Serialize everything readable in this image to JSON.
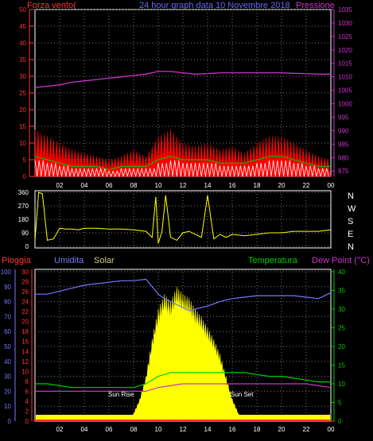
{
  "header": {
    "wind_label": "Forza vento(",
    "title": "24 hour graph data  10 Novembre 2018",
    "pressure_label": "Pressione"
  },
  "footer_labels": {
    "rain": "Pioggia",
    "humidity": "Umidita",
    "solar": "Solar",
    "temperature": "Temperatura",
    "dewpoint": "Dew Point (°C)",
    "sunrise": "Sun Rise",
    "sunset": "Sun Set"
  },
  "compass": [
    "N",
    "W",
    "S",
    "E",
    "N"
  ],
  "colors": {
    "pressure": "#cc33cc",
    "wind": "#ff0000",
    "wind_avg": "#00cc00",
    "wind_gust": "#ffffff",
    "direction": "#ffff00",
    "humidity": "#7777ff",
    "temperature": "#00cc00",
    "dewpoint": "#cc33cc",
    "rain": "#ff3333",
    "solar": "#ffff00",
    "axis_wind": "#ff3333",
    "axis_pressure": "#cc33cc",
    "axis_humidity": "#7777ff",
    "axis_temp": "#00cc00"
  },
  "chart_data": [
    {
      "type": "line",
      "name": "wind_pressure",
      "x_ticks": [
        "02",
        "04",
        "06",
        "08",
        "10",
        "12",
        "14",
        "16",
        "18",
        "20",
        "22",
        "00"
      ],
      "left_ticks": [
        "0",
        "5",
        "10",
        "15",
        "20",
        "25",
        "30",
        "35",
        "40",
        "45",
        "50"
      ],
      "right_ticks": [
        "975",
        "980",
        "985",
        "990",
        "995",
        "1000",
        "1005",
        "1010",
        "1015",
        "1020",
        "1025",
        "1030",
        "1035"
      ],
      "ylim_left": [
        0,
        50
      ],
      "ylim_right": [
        973,
        1035
      ],
      "pressure_x": [
        0,
        1,
        2,
        3,
        4,
        5,
        6,
        7,
        8,
        9,
        10,
        11,
        12,
        13,
        14,
        15,
        16,
        17,
        18,
        19,
        20,
        21,
        22,
        23,
        24
      ],
      "pressure": [
        1006,
        1006.5,
        1007,
        1008,
        1008.5,
        1009,
        1009.5,
        1010,
        1010.5,
        1011,
        1012,
        1012,
        1011.5,
        1011,
        1011.2,
        1011.5,
        1011.5,
        1011.5,
        1011.5,
        1011.5,
        1011.5,
        1011.3,
        1011.2,
        1011,
        1011
      ],
      "wind_x": [
        0,
        1,
        2,
        3,
        4,
        5,
        6,
        7,
        8,
        9,
        10,
        11,
        12,
        13,
        14,
        15,
        16,
        17,
        18,
        19,
        20,
        21,
        22,
        23,
        24
      ],
      "wind_gust": [
        14,
        12,
        10,
        8,
        7,
        6,
        5,
        6,
        8,
        6,
        12,
        14,
        10,
        9,
        10,
        8,
        9,
        7,
        10,
        12,
        12,
        10,
        8,
        6,
        5
      ],
      "wind_avg": [
        6,
        5,
        4,
        3,
        3,
        3,
        2,
        3,
        3,
        3,
        5,
        6,
        5,
        5,
        5,
        4,
        4,
        4,
        5,
        6,
        6,
        5,
        4,
        3,
        3
      ]
    },
    {
      "type": "scatter",
      "name": "wind_direction",
      "left_ticks": [
        "0",
        "90",
        "180",
        "270",
        "360"
      ],
      "ylim": [
        0,
        360
      ],
      "x": [
        0,
        0.3,
        0.6,
        1,
        1.5,
        2,
        2.5,
        3,
        3.5,
        4,
        5,
        6,
        7,
        8,
        9,
        9.5,
        9.8,
        10,
        10.3,
        10.6,
        11,
        11.5,
        12,
        12.5,
        13,
        13.5,
        14,
        14.5,
        15,
        15.5,
        16,
        17,
        18,
        19,
        20,
        21,
        22,
        23,
        24
      ],
      "values": [
        40,
        360,
        350,
        40,
        50,
        120,
        115,
        115,
        110,
        120,
        120,
        115,
        115,
        110,
        100,
        60,
        330,
        20,
        100,
        340,
        60,
        40,
        90,
        100,
        80,
        60,
        340,
        50,
        80,
        60,
        80,
        70,
        80,
        90,
        90,
        100,
        100,
        100,
        110
      ]
    },
    {
      "type": "line",
      "name": "humidity_temp_solar",
      "left_ticks": [
        "0",
        "10",
        "20",
        "30",
        "40",
        "50",
        "60",
        "70",
        "80",
        "90",
        "100"
      ],
      "rain_ticks": [
        "0",
        "2",
        "4",
        "6",
        "8",
        "10",
        "12",
        "14",
        "16",
        "18",
        "20",
        "22",
        "24",
        "26",
        "28",
        "30"
      ],
      "right_ticks": [
        "0",
        "5",
        "10",
        "15",
        "20",
        "25",
        "30",
        "35",
        "40"
      ],
      "ylim_humidity": [
        0,
        100
      ],
      "ylim_temp": [
        0,
        40
      ],
      "humidity_x": [
        0,
        1,
        2,
        3,
        4,
        5,
        6,
        7,
        8,
        9,
        9.5,
        10,
        10.5,
        11,
        11.5,
        12,
        12.5,
        13,
        14,
        15,
        16,
        17,
        18,
        19,
        20,
        21,
        22,
        23,
        23.5,
        24
      ],
      "humidity": [
        85,
        85,
        87,
        89,
        91,
        92,
        93,
        94,
        94,
        95,
        90,
        85,
        82,
        80,
        78,
        76,
        74,
        75,
        77,
        80,
        82,
        83,
        84,
        84,
        84,
        84,
        83,
        82,
        84,
        86
      ],
      "temperature_x": [
        0,
        1,
        2,
        3,
        4,
        5,
        6,
        7,
        8,
        9,
        10,
        11,
        12,
        13,
        14,
        15,
        16,
        17,
        18,
        19,
        20,
        21,
        22,
        23,
        24
      ],
      "temperature": [
        10,
        10,
        9.5,
        9,
        9,
        9,
        9,
        9,
        9,
        10,
        12,
        13,
        13,
        13,
        13,
        13,
        13,
        13,
        12.5,
        12,
        12,
        11.5,
        11,
        10.5,
        10.5
      ],
      "dewpoint_x": [
        0,
        1,
        2,
        3,
        4,
        5,
        6,
        7,
        8,
        9,
        10,
        11,
        12,
        13,
        14,
        15,
        16,
        17,
        18,
        19,
        20,
        21,
        22,
        23,
        24
      ],
      "dewpoint": [
        8,
        8,
        8,
        8,
        8,
        8,
        8,
        8,
        8,
        8,
        9,
        9.5,
        10,
        10,
        10,
        10,
        10,
        10,
        10,
        10,
        10,
        10,
        10,
        9.5,
        9
      ],
      "solar_x": [
        0,
        7.5,
        8,
        8.5,
        9,
        9.5,
        10,
        10.5,
        11,
        11.5,
        12,
        12.5,
        13,
        13.5,
        14,
        14.5,
        15,
        15.5,
        16,
        16.5,
        17,
        24
      ],
      "solar": [
        0,
        0,
        2,
        6,
        12,
        22,
        30,
        34,
        32,
        36,
        34,
        33,
        30,
        28,
        25,
        22,
        18,
        12,
        6,
        2,
        0,
        0
      ],
      "rain": 0
    }
  ]
}
